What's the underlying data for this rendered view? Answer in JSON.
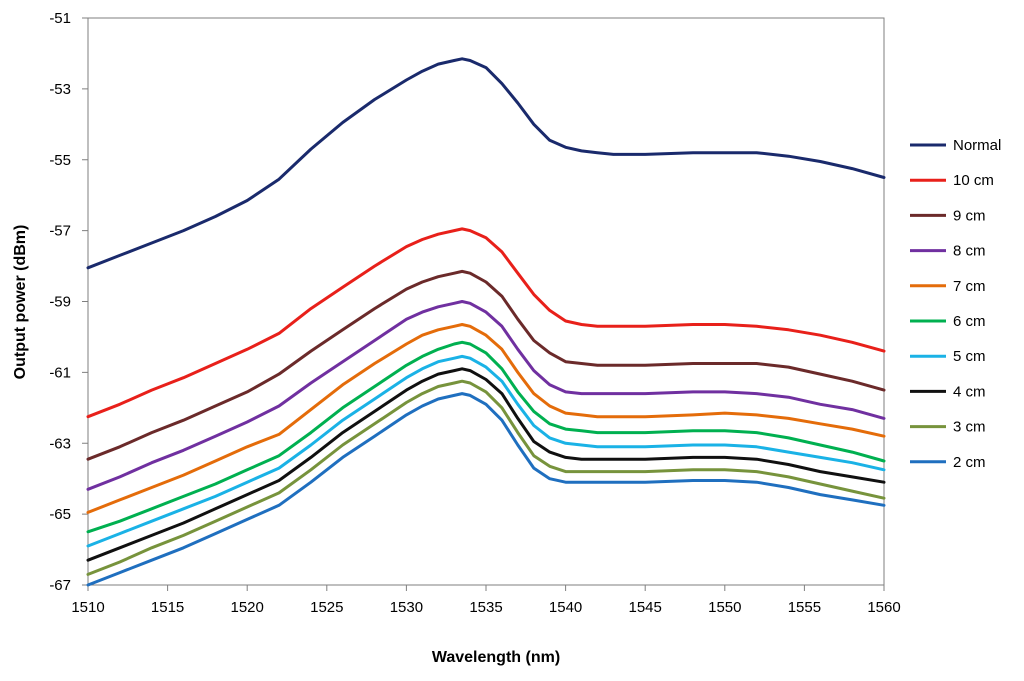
{
  "chart_data": {
    "type": "line",
    "title": "",
    "xlabel": "Wavelength (nm)",
    "ylabel": "Output power (dBm)",
    "xlim": [
      1510,
      1560
    ],
    "ylim": [
      -67,
      -51
    ],
    "x_ticks": [
      1510,
      1515,
      1520,
      1525,
      1530,
      1535,
      1540,
      1545,
      1550,
      1555,
      1560
    ],
    "y_ticks": [
      -67,
      -65,
      -63,
      -61,
      -59,
      -57,
      -55,
      -53,
      -51
    ],
    "grid": false,
    "legend_position": "right",
    "x": [
      1510,
      1512,
      1514,
      1516,
      1518,
      1520,
      1522,
      1524,
      1526,
      1528,
      1530,
      1531,
      1532,
      1533,
      1533.5,
      1534,
      1535,
      1536,
      1537,
      1538,
      1539,
      1540,
      1541,
      1542,
      1543,
      1545,
      1548,
      1550,
      1552,
      1554,
      1556,
      1558,
      1560
    ],
    "series": [
      {
        "name": "Normal",
        "color": "#1a2a6c",
        "values": [
          -58.05,
          -57.7,
          -57.35,
          -57.0,
          -56.6,
          -56.15,
          -55.55,
          -54.7,
          -53.95,
          -53.3,
          -52.75,
          -52.5,
          -52.3,
          -52.2,
          -52.15,
          -52.2,
          -52.4,
          -52.85,
          -53.4,
          -54.0,
          -54.45,
          -54.65,
          -54.75,
          -54.8,
          -54.85,
          -54.85,
          -54.8,
          -54.8,
          -54.8,
          -54.9,
          -55.05,
          -55.25,
          -55.5
        ]
      },
      {
        "name": "10 cm",
        "color": "#e8201a",
        "values": [
          -62.25,
          -61.9,
          -61.5,
          -61.15,
          -60.75,
          -60.35,
          -59.9,
          -59.2,
          -58.6,
          -58.0,
          -57.45,
          -57.25,
          -57.1,
          -57.0,
          -56.95,
          -57.0,
          -57.2,
          -57.6,
          -58.2,
          -58.8,
          -59.25,
          -59.55,
          -59.65,
          -59.7,
          -59.7,
          -59.7,
          -59.65,
          -59.65,
          -59.7,
          -59.8,
          -59.95,
          -60.15,
          -60.4
        ]
      },
      {
        "name": "9 cm",
        "color": "#6b2a2a",
        "values": [
          -63.45,
          -63.1,
          -62.7,
          -62.35,
          -61.95,
          -61.55,
          -61.05,
          -60.4,
          -59.8,
          -59.2,
          -58.65,
          -58.45,
          -58.3,
          -58.2,
          -58.15,
          -58.2,
          -58.45,
          -58.85,
          -59.5,
          -60.1,
          -60.45,
          -60.7,
          -60.75,
          -60.8,
          -60.8,
          -60.8,
          -60.75,
          -60.75,
          -60.75,
          -60.85,
          -61.05,
          -61.25,
          -61.5
        ]
      },
      {
        "name": "8 cm",
        "color": "#7030a0",
        "values": [
          -64.3,
          -63.95,
          -63.55,
          -63.2,
          -62.8,
          -62.4,
          -61.95,
          -61.3,
          -60.7,
          -60.1,
          -59.5,
          -59.3,
          -59.15,
          -59.05,
          -59.0,
          -59.05,
          -59.3,
          -59.7,
          -60.35,
          -60.95,
          -61.35,
          -61.55,
          -61.6,
          -61.6,
          -61.6,
          -61.6,
          -61.55,
          -61.55,
          -61.6,
          -61.7,
          -61.9,
          -62.05,
          -62.3
        ]
      },
      {
        "name": "7 cm",
        "color": "#e46c0a",
        "values": [
          -64.95,
          -64.6,
          -64.25,
          -63.9,
          -63.5,
          -63.1,
          -62.75,
          -62.05,
          -61.35,
          -60.75,
          -60.2,
          -59.95,
          -59.8,
          -59.7,
          -59.65,
          -59.7,
          -59.95,
          -60.35,
          -61.0,
          -61.6,
          -61.95,
          -62.15,
          -62.2,
          -62.25,
          -62.25,
          -62.25,
          -62.2,
          -62.15,
          -62.2,
          -62.3,
          -62.45,
          -62.6,
          -62.8
        ]
      },
      {
        "name": "6 cm",
        "color": "#00b050",
        "values": [
          -65.5,
          -65.2,
          -64.85,
          -64.5,
          -64.15,
          -63.75,
          -63.35,
          -62.7,
          -62.0,
          -61.4,
          -60.8,
          -60.55,
          -60.35,
          -60.2,
          -60.15,
          -60.2,
          -60.45,
          -60.9,
          -61.55,
          -62.1,
          -62.45,
          -62.6,
          -62.65,
          -62.7,
          -62.7,
          -62.7,
          -62.65,
          -62.65,
          -62.7,
          -62.85,
          -63.05,
          -63.25,
          -63.5
        ]
      },
      {
        "name": "5 cm",
        "color": "#1ab2e6",
        "values": [
          -65.9,
          -65.55,
          -65.2,
          -64.85,
          -64.5,
          -64.1,
          -63.7,
          -63.05,
          -62.35,
          -61.75,
          -61.15,
          -60.9,
          -60.7,
          -60.6,
          -60.55,
          -60.6,
          -60.85,
          -61.25,
          -61.9,
          -62.5,
          -62.85,
          -63.0,
          -63.05,
          -63.1,
          -63.1,
          -63.1,
          -63.05,
          -63.05,
          -63.1,
          -63.25,
          -63.4,
          -63.55,
          -63.75
        ]
      },
      {
        "name": "4 cm",
        "color": "#101010",
        "values": [
          -66.3,
          -65.95,
          -65.6,
          -65.25,
          -64.85,
          -64.45,
          -64.05,
          -63.4,
          -62.7,
          -62.1,
          -61.5,
          -61.25,
          -61.05,
          -60.95,
          -60.9,
          -60.95,
          -61.2,
          -61.6,
          -62.3,
          -62.95,
          -63.25,
          -63.4,
          -63.45,
          -63.45,
          -63.45,
          -63.45,
          -63.4,
          -63.4,
          -63.45,
          -63.6,
          -63.8,
          -63.95,
          -64.1
        ]
      },
      {
        "name": "3 cm",
        "color": "#77933c",
        "values": [
          -66.7,
          -66.35,
          -65.95,
          -65.6,
          -65.2,
          -64.8,
          -64.4,
          -63.75,
          -63.05,
          -62.45,
          -61.85,
          -61.6,
          -61.4,
          -61.3,
          -61.25,
          -61.3,
          -61.55,
          -62.0,
          -62.7,
          -63.35,
          -63.65,
          -63.8,
          -63.8,
          -63.8,
          -63.8,
          -63.8,
          -63.75,
          -63.75,
          -63.8,
          -63.95,
          -64.15,
          -64.35,
          -64.55
        ]
      },
      {
        "name": "2 cm",
        "color": "#1f6fbf",
        "values": [
          -67.0,
          -66.65,
          -66.3,
          -65.95,
          -65.55,
          -65.15,
          -64.75,
          -64.1,
          -63.4,
          -62.8,
          -62.2,
          -61.95,
          -61.75,
          -61.65,
          -61.6,
          -61.65,
          -61.9,
          -62.35,
          -63.05,
          -63.7,
          -64.0,
          -64.1,
          -64.1,
          -64.1,
          -64.1,
          -64.1,
          -64.05,
          -64.05,
          -64.1,
          -64.25,
          -64.45,
          -64.6,
          -64.75
        ]
      }
    ]
  }
}
